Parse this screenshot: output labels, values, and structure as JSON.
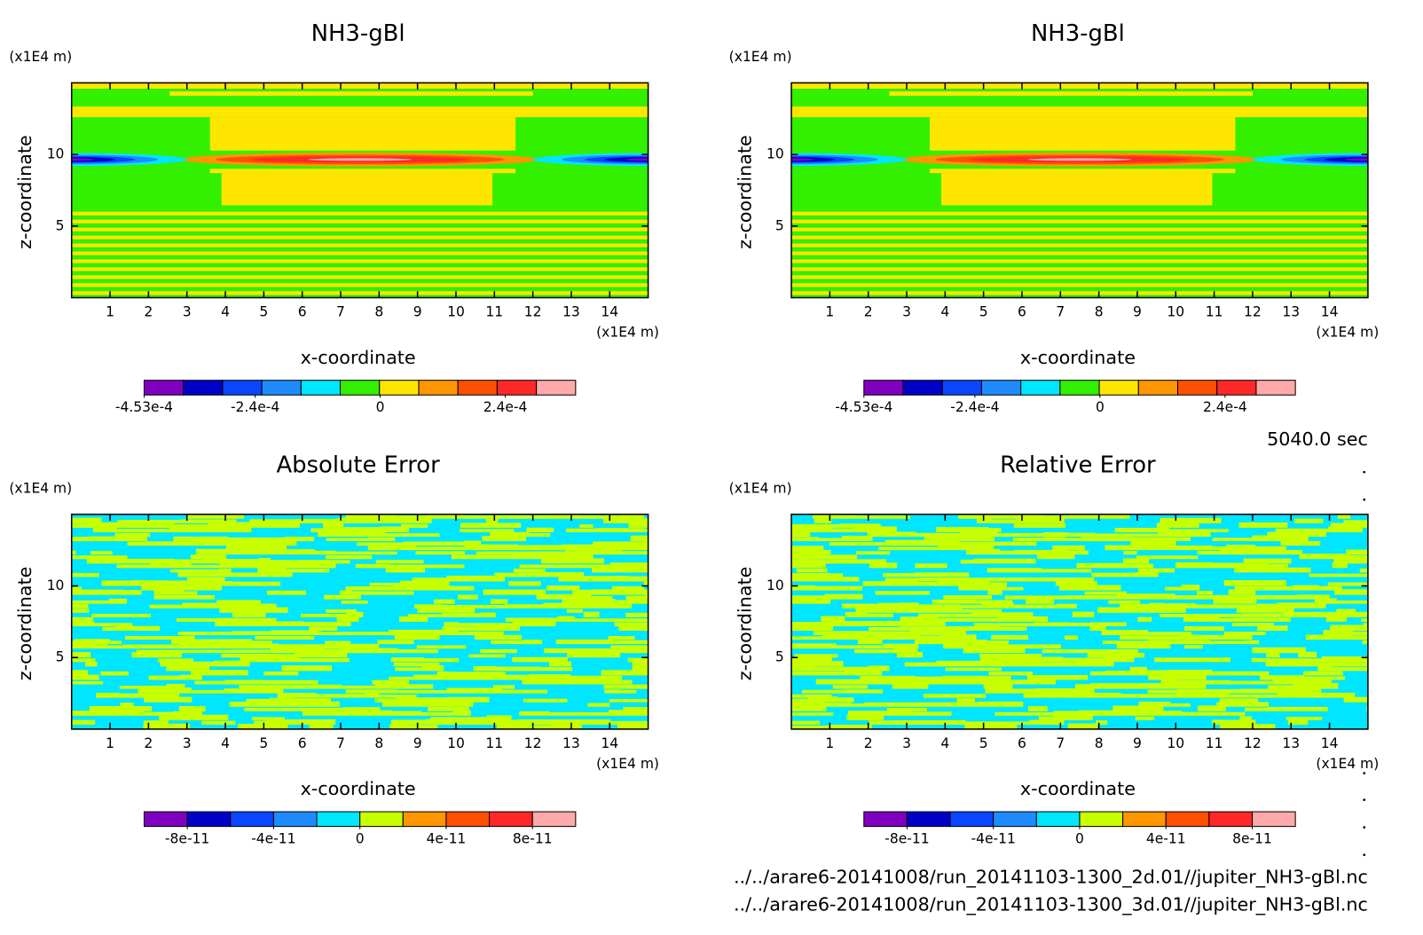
{
  "chart_data": [
    {
      "type": "contour",
      "title": "NH3-gBl",
      "x_label": "x-coordinate",
      "y_label": "z-coordinate",
      "x_unit": "(x1E4 m)",
      "y_unit": "(x1E4 m)",
      "xlim": [
        0,
        15
      ],
      "ylim": [
        0,
        15
      ],
      "xticks": [
        1,
        2,
        3,
        4,
        5,
        6,
        7,
        8,
        9,
        10,
        11,
        12,
        13,
        14
      ],
      "yticks": [
        5,
        10
      ],
      "colorbar": {
        "colors": [
          "#8000c0",
          "#0000c8",
          "#0a46ff",
          "#1e8cff",
          "#00e6ff",
          "#32f000",
          "#ffe600",
          "#ff9600",
          "#ff5000",
          "#ff2828",
          "#ffaaaa"
        ],
        "lim": [
          -0.000453,
          0.000375
        ],
        "ticks": [
          {
            "value": -0.000453,
            "label": "-4.53e-4"
          },
          {
            "value": -0.00024,
            "label": "-2.4e-4"
          },
          0,
          {
            "value": 0.00024,
            "label": "2.4e-4"
          }
        ]
      }
    },
    {
      "type": "contour",
      "title": "NH3-gBl",
      "x_label": "x-coordinate",
      "y_label": "z-coordinate",
      "x_unit": "(x1E4 m)",
      "y_unit": "(x1E4 m)",
      "xlim": [
        0,
        15
      ],
      "ylim": [
        0,
        15
      ],
      "xticks": [
        1,
        2,
        3,
        4,
        5,
        6,
        7,
        8,
        9,
        10,
        11,
        12,
        13,
        14
      ],
      "yticks": [
        5,
        10
      ],
      "colorbar": {
        "colors": [
          "#8000c0",
          "#0000c8",
          "#0a46ff",
          "#1e8cff",
          "#00e6ff",
          "#32f000",
          "#ffe600",
          "#ff9600",
          "#ff5000",
          "#ff2828",
          "#ffaaaa"
        ],
        "lim": [
          -0.000453,
          0.000375
        ],
        "ticks": [
          {
            "value": -0.000453,
            "label": "-4.53e-4"
          },
          {
            "value": -0.00024,
            "label": "-2.4e-4"
          },
          0,
          {
            "value": 0.00024,
            "label": "2.4e-4"
          }
        ]
      }
    },
    {
      "type": "contour-noise",
      "title": "Absolute Error",
      "x_label": "x-coordinate",
      "y_label": "z-coordinate",
      "x_unit": "(x1E4 m)",
      "y_unit": "(x1E4 m)",
      "xlim": [
        0,
        15
      ],
      "ylim": [
        0,
        15
      ],
      "xticks": [
        1,
        2,
        3,
        4,
        5,
        6,
        7,
        8,
        9,
        10,
        11,
        12,
        13,
        14
      ],
      "yticks": [
        5,
        10
      ],
      "colorbar": {
        "colors": [
          "#8000c0",
          "#0000c8",
          "#0a46ff",
          "#1e8cff",
          "#00e6ff",
          "#c8ff00",
          "#ff9600",
          "#ff5000",
          "#ff2828",
          "#ffaaaa"
        ],
        "lim": [
          -1e-10,
          1e-10
        ],
        "ticks": [
          {
            "value": -8e-11,
            "label": "-8e-11"
          },
          {
            "value": -4e-11,
            "label": "-4e-11"
          },
          0,
          {
            "value": 4e-11,
            "label": "4e-11"
          },
          {
            "value": 8e-11,
            "label": "8e-11"
          }
        ]
      }
    },
    {
      "type": "contour-noise",
      "title": "Relative Error",
      "x_label": "x-coordinate",
      "y_label": "z-coordinate",
      "x_unit": "(x1E4 m)",
      "y_unit": "(x1E4 m)",
      "xlim": [
        0,
        15
      ],
      "ylim": [
        0,
        15
      ],
      "xticks": [
        1,
        2,
        3,
        4,
        5,
        6,
        7,
        8,
        9,
        10,
        11,
        12,
        13,
        14
      ],
      "yticks": [
        5,
        10
      ],
      "colorbar": {
        "colors": [
          "#8000c0",
          "#0000c8",
          "#0a46ff",
          "#1e8cff",
          "#00e6ff",
          "#c8ff00",
          "#ff9600",
          "#ff5000",
          "#ff2828",
          "#ffaaaa"
        ],
        "lim": [
          -1e-10,
          1e-10
        ],
        "ticks": [
          {
            "value": -8e-11,
            "label": "-8e-11"
          },
          {
            "value": -4e-11,
            "label": "-4e-11"
          },
          0,
          {
            "value": 4e-11,
            "label": "4e-11"
          },
          {
            "value": 8e-11,
            "label": "8e-11"
          }
        ]
      }
    }
  ],
  "time": "5040.0 sec",
  "files": [
    "../../arare6-20141008/run_20141103-1300_2d.01//jupiter_NH3-gBl.nc",
    "../../arare6-20141008/run_20141103-1300_3d.01//jupiter_NH3-gBl.nc"
  ]
}
